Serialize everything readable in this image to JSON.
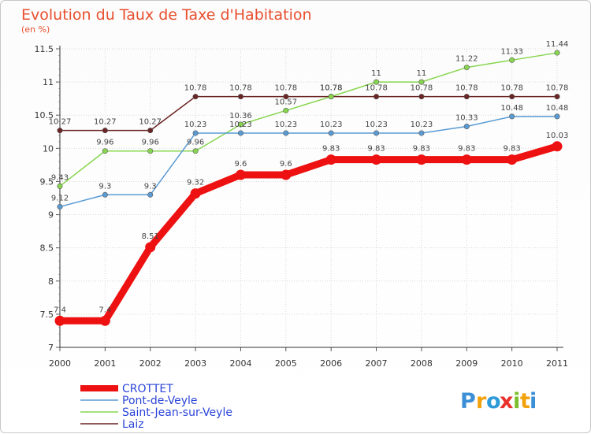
{
  "header": {
    "title": "Evolution du Taux de Taxe d'Habitation",
    "subtitle": "(en %)"
  },
  "brand": {
    "name": "Proxiti",
    "letters": [
      "P",
      "r",
      "o",
      "x",
      "i",
      "t",
      "i"
    ],
    "colors": [
      "#3a8fd6",
      "#f2a20c",
      "#2f9ad8",
      "#e8312d",
      "#7bbf2c",
      "#f2a20c",
      "#3a8fd6"
    ]
  },
  "chart_data": {
    "type": "line",
    "title": "Evolution du Taux de Taxe d'Habitation",
    "subtitle": "(en %)",
    "x": [
      "2000",
      "2001",
      "2002",
      "2003",
      "2004",
      "2005",
      "2006",
      "2007",
      "2008",
      "2009",
      "2010",
      "2011"
    ],
    "ylim": [
      7,
      11.5
    ],
    "yticks": [
      "7",
      "7.5",
      "8",
      "8.5",
      "9",
      "9.5",
      "10",
      "10.5",
      "11",
      "11.5"
    ],
    "legend_position": "bottom-left",
    "series": [
      {
        "name": "CROTTET",
        "color": "#ee1111",
        "values": [
          7.4,
          7.4,
          8.51,
          9.32,
          9.6,
          9.6,
          9.83,
          9.83,
          9.83,
          9.83,
          9.83,
          10.03
        ],
        "labels": [
          "7.4",
          "7.4",
          "8.51",
          "9.32",
          "9.6",
          "9.6",
          "9.83",
          "9.83",
          "9.83",
          "9.83",
          "9.83",
          "10.03"
        ]
      },
      {
        "name": "Pont-de-Veyle",
        "color": "#5a9bd4",
        "values": [
          9.12,
          9.3,
          9.3,
          10.23,
          10.23,
          10.23,
          10.23,
          10.23,
          10.23,
          10.33,
          10.48,
          10.48
        ],
        "labels": [
          "9.12",
          "9.3",
          "9.3",
          "10.23",
          "10.23",
          "10.23",
          "10.23",
          "10.23",
          "10.23",
          "10.33",
          "10.48",
          "10.48"
        ]
      },
      {
        "name": "Saint-Jean-sur-Veyle",
        "color": "#88d650",
        "values": [
          9.43,
          9.96,
          9.96,
          9.96,
          10.36,
          10.57,
          10.78,
          11,
          11,
          11.22,
          11.33,
          11.44
        ],
        "labels": [
          "9.43",
          "9.96",
          "9.96",
          "9.96",
          "10.36",
          "10.57",
          "10.78",
          "11",
          "11",
          "11.22",
          "11.33",
          "11.44"
        ]
      },
      {
        "name": "Laiz",
        "color": "#6b2424",
        "values": [
          10.27,
          10.27,
          10.27,
          10.78,
          10.78,
          10.78,
          10.78,
          10.78,
          10.78,
          10.78,
          10.78,
          10.78
        ],
        "labels": [
          "10.27",
          "10.27",
          "10.27",
          "10.78",
          "10.78",
          "10.78",
          "10.78",
          "10.78",
          "10.78",
          "10.78",
          "10.78",
          "10.78"
        ]
      }
    ]
  }
}
